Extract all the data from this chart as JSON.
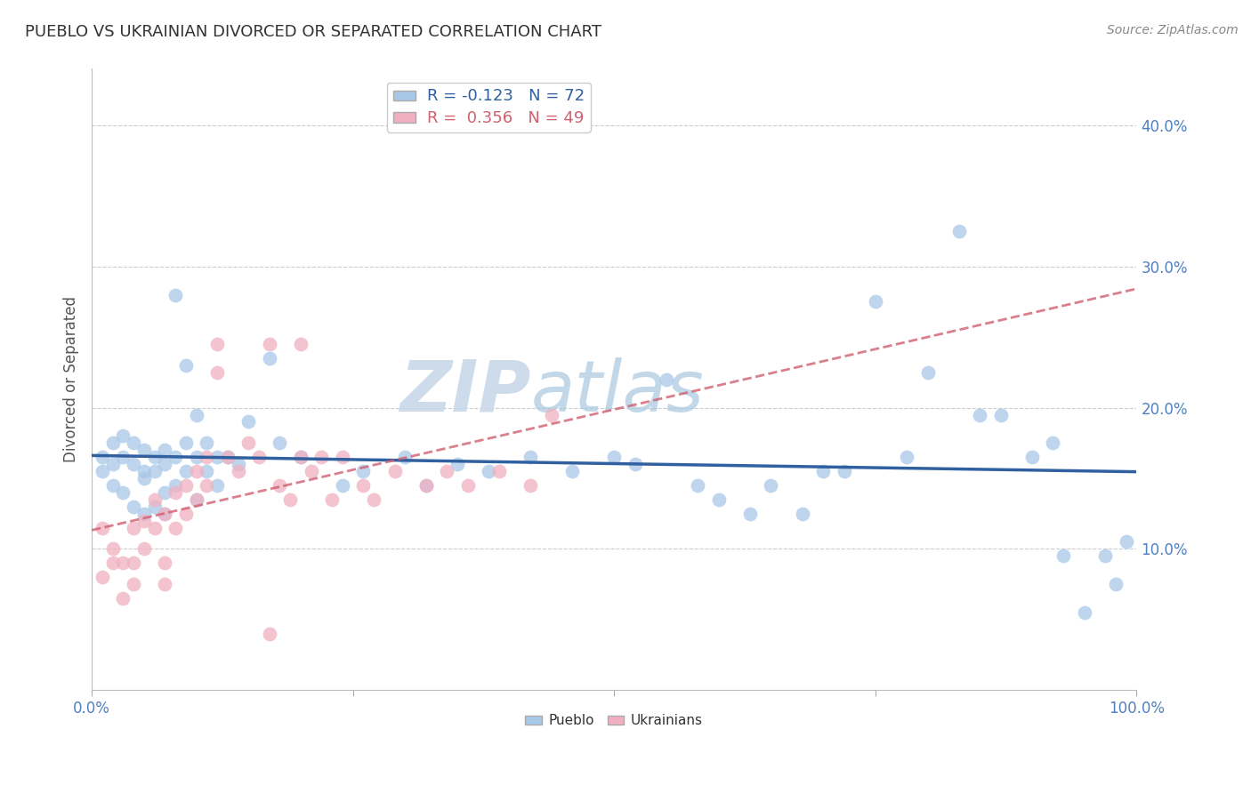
{
  "title": "PUEBLO VS UKRAINIAN DIVORCED OR SEPARATED CORRELATION CHART",
  "source": "Source: ZipAtlas.com",
  "xlabel_blue": "Pueblo",
  "xlabel_pink": "Ukrainians",
  "ylabel": "Divorced or Separated",
  "blue_R": -0.123,
  "blue_N": 72,
  "pink_R": 0.356,
  "pink_N": 49,
  "blue_color": "#a8c8e8",
  "pink_color": "#f0b0c0",
  "blue_line_color": "#3060a0",
  "pink_line_color": "#d06070",
  "watermark_color": "#c8d8e8",
  "tick_color": "#5080c0",
  "xlim": [
    0.0,
    1.0
  ],
  "ylim": [
    0.0,
    0.44
  ],
  "xticks": [
    0.0,
    0.25,
    0.5,
    0.75,
    1.0
  ],
  "xtick_labels": [
    "0.0%",
    "",
    "",
    "",
    "100.0%"
  ],
  "yticks": [
    0.1,
    0.2,
    0.3,
    0.4
  ],
  "ytick_labels": [
    "10.0%",
    "20.0%",
    "30.0%",
    "40.0%"
  ],
  "blue_scatter_x": [
    0.01,
    0.01,
    0.02,
    0.02,
    0.02,
    0.03,
    0.03,
    0.03,
    0.04,
    0.04,
    0.04,
    0.05,
    0.05,
    0.05,
    0.05,
    0.06,
    0.06,
    0.06,
    0.07,
    0.07,
    0.07,
    0.07,
    0.08,
    0.08,
    0.08,
    0.09,
    0.09,
    0.09,
    0.1,
    0.1,
    0.1,
    0.11,
    0.11,
    0.12,
    0.12,
    0.13,
    0.14,
    0.15,
    0.17,
    0.18,
    0.2,
    0.24,
    0.26,
    0.3,
    0.32,
    0.35,
    0.38,
    0.42,
    0.46,
    0.5,
    0.52,
    0.55,
    0.58,
    0.6,
    0.63,
    0.65,
    0.68,
    0.7,
    0.72,
    0.75,
    0.78,
    0.8,
    0.83,
    0.85,
    0.87,
    0.9,
    0.92,
    0.93,
    0.95,
    0.97,
    0.98,
    0.99
  ],
  "blue_scatter_y": [
    0.165,
    0.155,
    0.175,
    0.16,
    0.145,
    0.18,
    0.165,
    0.14,
    0.175,
    0.16,
    0.13,
    0.17,
    0.15,
    0.155,
    0.125,
    0.165,
    0.155,
    0.13,
    0.17,
    0.16,
    0.14,
    0.125,
    0.28,
    0.165,
    0.145,
    0.23,
    0.175,
    0.155,
    0.195,
    0.165,
    0.135,
    0.175,
    0.155,
    0.165,
    0.145,
    0.165,
    0.16,
    0.19,
    0.235,
    0.175,
    0.165,
    0.145,
    0.155,
    0.165,
    0.145,
    0.16,
    0.155,
    0.165,
    0.155,
    0.165,
    0.16,
    0.22,
    0.145,
    0.135,
    0.125,
    0.145,
    0.125,
    0.155,
    0.155,
    0.275,
    0.165,
    0.225,
    0.325,
    0.195,
    0.195,
    0.165,
    0.175,
    0.095,
    0.055,
    0.095,
    0.075,
    0.105
  ],
  "pink_scatter_x": [
    0.01,
    0.01,
    0.02,
    0.02,
    0.03,
    0.03,
    0.04,
    0.04,
    0.04,
    0.05,
    0.05,
    0.06,
    0.06,
    0.07,
    0.07,
    0.07,
    0.08,
    0.08,
    0.09,
    0.09,
    0.1,
    0.1,
    0.11,
    0.11,
    0.12,
    0.12,
    0.13,
    0.14,
    0.15,
    0.16,
    0.17,
    0.18,
    0.19,
    0.2,
    0.2,
    0.21,
    0.22,
    0.23,
    0.24,
    0.26,
    0.27,
    0.29,
    0.32,
    0.34,
    0.36,
    0.39,
    0.42,
    0.44,
    0.17
  ],
  "pink_scatter_y": [
    0.115,
    0.08,
    0.1,
    0.09,
    0.09,
    0.065,
    0.115,
    0.09,
    0.075,
    0.12,
    0.1,
    0.135,
    0.115,
    0.125,
    0.09,
    0.075,
    0.14,
    0.115,
    0.145,
    0.125,
    0.155,
    0.135,
    0.165,
    0.145,
    0.245,
    0.225,
    0.165,
    0.155,
    0.175,
    0.165,
    0.245,
    0.145,
    0.135,
    0.165,
    0.245,
    0.155,
    0.165,
    0.135,
    0.165,
    0.145,
    0.135,
    0.155,
    0.145,
    0.155,
    0.145,
    0.155,
    0.145,
    0.195,
    0.04
  ]
}
